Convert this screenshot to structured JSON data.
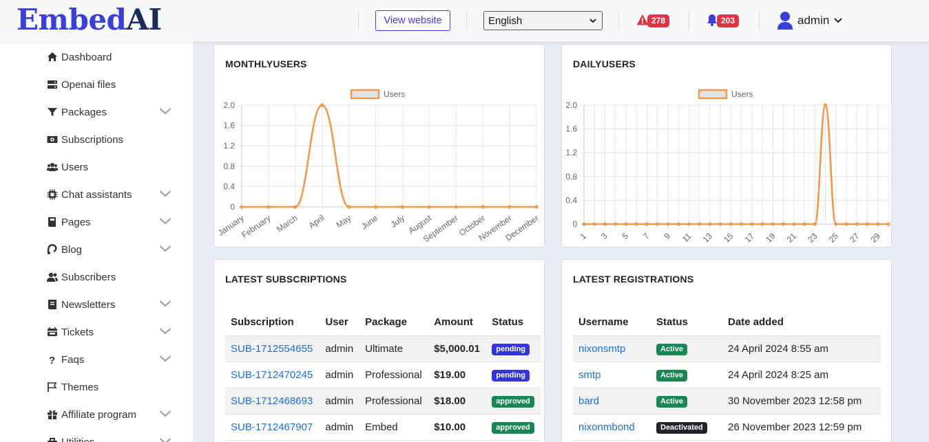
{
  "header": {
    "logo_part1": "Embed",
    "logo_part2": "AI",
    "view_website": "View website",
    "language": "English",
    "alerts_count": "278",
    "notifications_count": "203",
    "user": "admin"
  },
  "sidebar": {
    "items": [
      {
        "label": "Dashboard",
        "icon": "home-icon"
      },
      {
        "label": "Openai files",
        "icon": "server-icon"
      },
      {
        "label": "Packages",
        "icon": "filter-icon",
        "expandable": true
      },
      {
        "label": "Subscriptions",
        "icon": "money-icon"
      },
      {
        "label": "Users",
        "icon": "users-icon"
      },
      {
        "label": "Chat assistants",
        "icon": "chip-icon",
        "expandable": true
      },
      {
        "label": "Pages",
        "icon": "book-icon",
        "expandable": true
      },
      {
        "label": "Blog",
        "icon": "blog-icon",
        "expandable": true
      },
      {
        "label": "Subscribers",
        "icon": "user-group-icon"
      },
      {
        "label": "Newsletters",
        "icon": "newsletter-icon",
        "expandable": true
      },
      {
        "label": "Tickets",
        "icon": "ticket-icon",
        "expandable": true
      },
      {
        "label": "Faqs",
        "icon": "question-icon",
        "expandable": true
      },
      {
        "label": "Themes",
        "icon": "flag-icon"
      },
      {
        "label": "Affiliate program",
        "icon": "gift-icon",
        "expandable": true
      },
      {
        "label": "Utilities",
        "icon": "tools-icon",
        "expandable": true
      }
    ]
  },
  "colors": {
    "accent": "#3b3fd8",
    "line": "#f0994d",
    "danger": "#dc3545",
    "success": "#198754"
  },
  "chart_data": [
    {
      "type": "line",
      "title": "MONTHLYUSERS",
      "categories": [
        "January",
        "February",
        "March",
        "April",
        "May",
        "June",
        "July",
        "August",
        "September",
        "October",
        "November",
        "December"
      ],
      "series": [
        {
          "name": "Users",
          "values": [
            0,
            0,
            0,
            2,
            0,
            0,
            0,
            0,
            0,
            0,
            0,
            0
          ]
        }
      ],
      "ylim": [
        0,
        2.0
      ],
      "yticks": [
        "0",
        "0.4",
        "0.8",
        "1.2",
        "1.6",
        "2.0"
      ],
      "grid": true,
      "legend": "top"
    },
    {
      "type": "line",
      "title": "DAILYUSERS",
      "x": [
        1,
        2,
        3,
        4,
        5,
        6,
        7,
        8,
        9,
        10,
        11,
        12,
        13,
        14,
        15,
        16,
        17,
        18,
        19,
        20,
        21,
        22,
        23,
        24,
        25,
        26,
        27,
        28,
        29,
        30
      ],
      "xticks": [
        "1",
        "3",
        "5",
        "7",
        "9",
        "11",
        "13",
        "15",
        "17",
        "19",
        "21",
        "23",
        "25",
        "27",
        "29"
      ],
      "series": [
        {
          "name": "Users",
          "values": [
            0,
            0,
            0,
            0,
            0,
            0,
            0,
            0,
            0,
            0,
            0,
            0,
            0,
            0,
            0,
            0,
            0,
            0,
            0,
            0,
            0,
            0,
            0,
            2,
            0,
            0,
            0,
            0,
            0,
            0
          ]
        }
      ],
      "ylim": [
        0,
        2.0
      ],
      "yticks": [
        "0",
        "0.4",
        "0.8",
        "1.2",
        "1.6",
        "2.0"
      ],
      "grid": true,
      "legend": "top"
    }
  ],
  "subscriptions": {
    "title": "LATEST SUBSCRIPTIONS",
    "headers": [
      "Subscription",
      "User",
      "Package",
      "Amount",
      "Status"
    ],
    "rows": [
      {
        "id": "SUB-1712554655",
        "user": "admin",
        "package": "Ultimate",
        "amount": "$5,000.01",
        "status": "pending"
      },
      {
        "id": "SUB-1712470245",
        "user": "admin",
        "package": "Professional",
        "amount": "$19.00",
        "status": "pending"
      },
      {
        "id": "SUB-1712468693",
        "user": "admin",
        "package": "Professional",
        "amount": "$18.00",
        "status": "approved"
      },
      {
        "id": "SUB-1712467907",
        "user": "admin",
        "package": "Embed",
        "amount": "$10.00",
        "status": "approved"
      }
    ]
  },
  "registrations": {
    "title": "LATEST REGISTRATIONS",
    "headers": [
      "Username",
      "Status",
      "Date added"
    ],
    "rows": [
      {
        "username": "nixonsmtp",
        "status": "Active",
        "date": "24 April 2024 8:55 am"
      },
      {
        "username": "smtp",
        "status": "Active",
        "date": "24 April 2024 8:25 am"
      },
      {
        "username": "bard",
        "status": "Active",
        "date": "30 November 2023 12:58 pm"
      },
      {
        "username": "nixonmbond",
        "status": "Deactivated",
        "date": "26 November 2023 12:59 pm"
      }
    ]
  }
}
